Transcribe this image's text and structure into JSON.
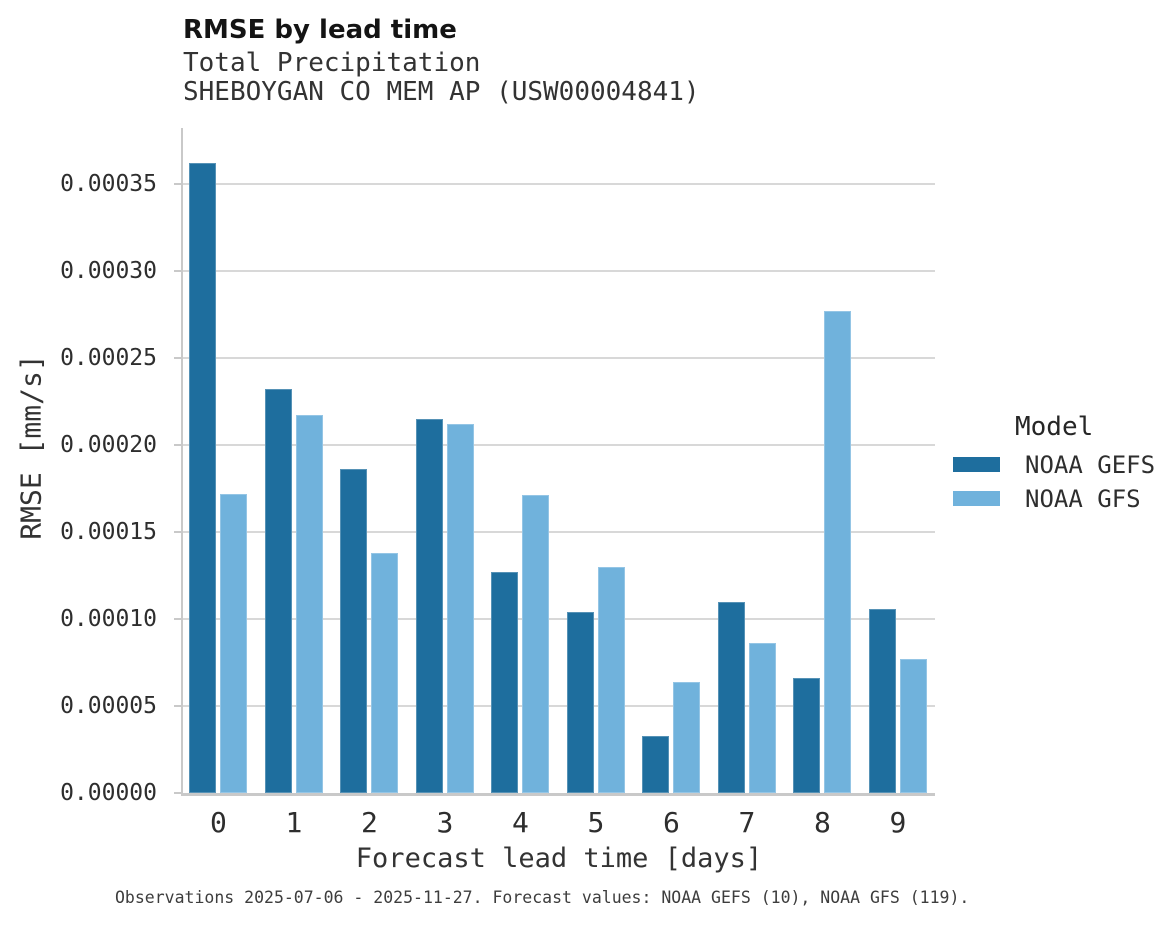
{
  "chart_data": {
    "type": "bar",
    "title": "RMSE by lead time",
    "subtitle_lines": [
      "Total Precipitation",
      "SHEBOYGAN CO MEM AP (USW00004841)"
    ],
    "xlabel": "Forecast lead time [days]",
    "ylabel": "RMSE [mm/s]",
    "categories": [
      "0",
      "1",
      "2",
      "3",
      "4",
      "5",
      "6",
      "7",
      "8",
      "9"
    ],
    "series": [
      {
        "name": "NOAA GEFS",
        "color": "#1e6e9e",
        "values": [
          0.000362,
          0.000232,
          0.000186,
          0.000215,
          0.000127,
          0.000104,
          3.3e-05,
          0.00011,
          6.6e-05,
          0.000106
        ]
      },
      {
        "name": "NOAA GFS",
        "color": "#70b2dc",
        "values": [
          0.000172,
          0.000217,
          0.000138,
          0.000212,
          0.000171,
          0.00013,
          6.4e-05,
          8.6e-05,
          0.000277,
          7.7e-05
        ]
      }
    ],
    "ylim": [
      0,
      0.000382
    ],
    "yticks": [
      0,
      5e-05,
      0.0001,
      0.00015,
      0.0002,
      0.00025,
      0.0003,
      0.00035
    ],
    "ytick_labels": [
      "0.00000",
      "0.00005",
      "0.00010",
      "0.00015",
      "0.00020",
      "0.00025",
      "0.00030",
      "0.00035"
    ],
    "grid": "horizontal gridlines only, light gray",
    "legend": {
      "title": "Model",
      "position": "right",
      "items": [
        {
          "label": "NOAA GEFS"
        },
        {
          "label": "NOAA GFS"
        }
      ]
    },
    "caption": "Observations 2025-07-06 - 2025-11-27. Forecast values: NOAA GEFS (10), NOAA GFS (119)."
  },
  "colors": {
    "gridline": "#d8d8d8",
    "spine": "#c9c9c9",
    "background": "#ffffff"
  }
}
